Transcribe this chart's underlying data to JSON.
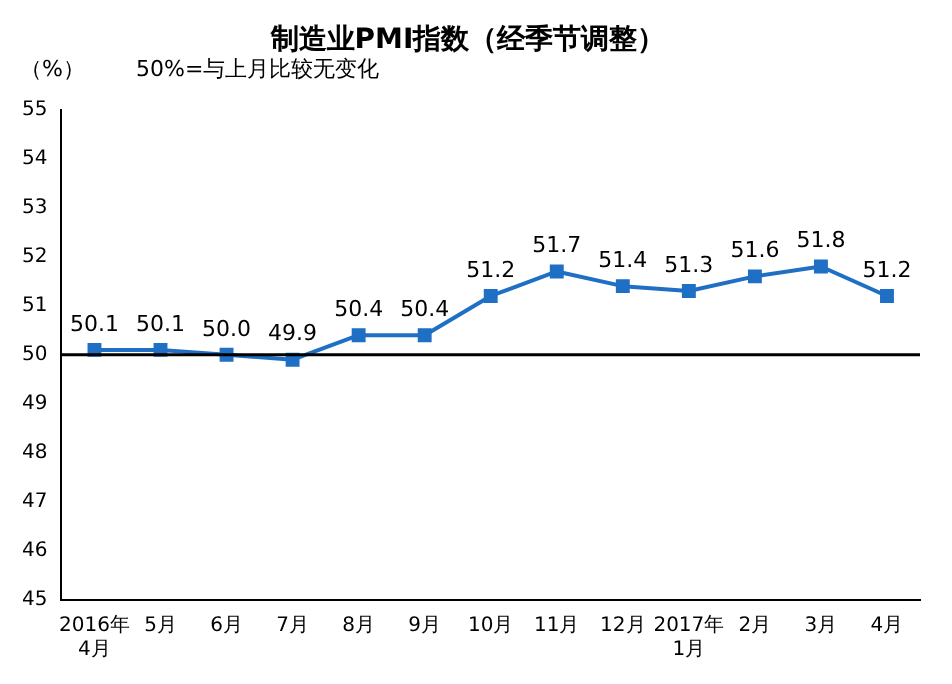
{
  "chart_data": {
    "type": "line",
    "title": "制造业PMI指数（经季节调整）",
    "ylabel": "（%）",
    "annotations": [
      "50%=与上月比较无变化"
    ],
    "categories": [
      "2016年\n4月",
      "5月",
      "6月",
      "7月",
      "8月",
      "9月",
      "10月",
      "11月",
      "12月",
      "2017年\n1月",
      "2月",
      "3月",
      "4月"
    ],
    "series": [
      {
        "color": "#1f6fc4",
        "values": [
          50.1,
          50.1,
          50.0,
          49.9,
          50.4,
          50.4,
          51.2,
          51.7,
          51.4,
          51.3,
          51.6,
          51.8,
          51.2
        ],
        "value_labels": [
          "50.1",
          "50.1",
          "50.0",
          "49.9",
          "50.4",
          "50.4",
          "51.2",
          "51.7",
          "51.4",
          "51.3",
          "51.6",
          "51.8",
          "51.2"
        ]
      }
    ],
    "ylim": [
      45,
      55
    ],
    "yticks": [
      45,
      46,
      47,
      48,
      49,
      50,
      51,
      52,
      53,
      54,
      55
    ],
    "grid": false,
    "legend": false,
    "marker": "square",
    "line_style": "solid",
    "ref_lines": [
      {
        "axis": "y",
        "value": 50,
        "color": "#000000"
      }
    ]
  }
}
